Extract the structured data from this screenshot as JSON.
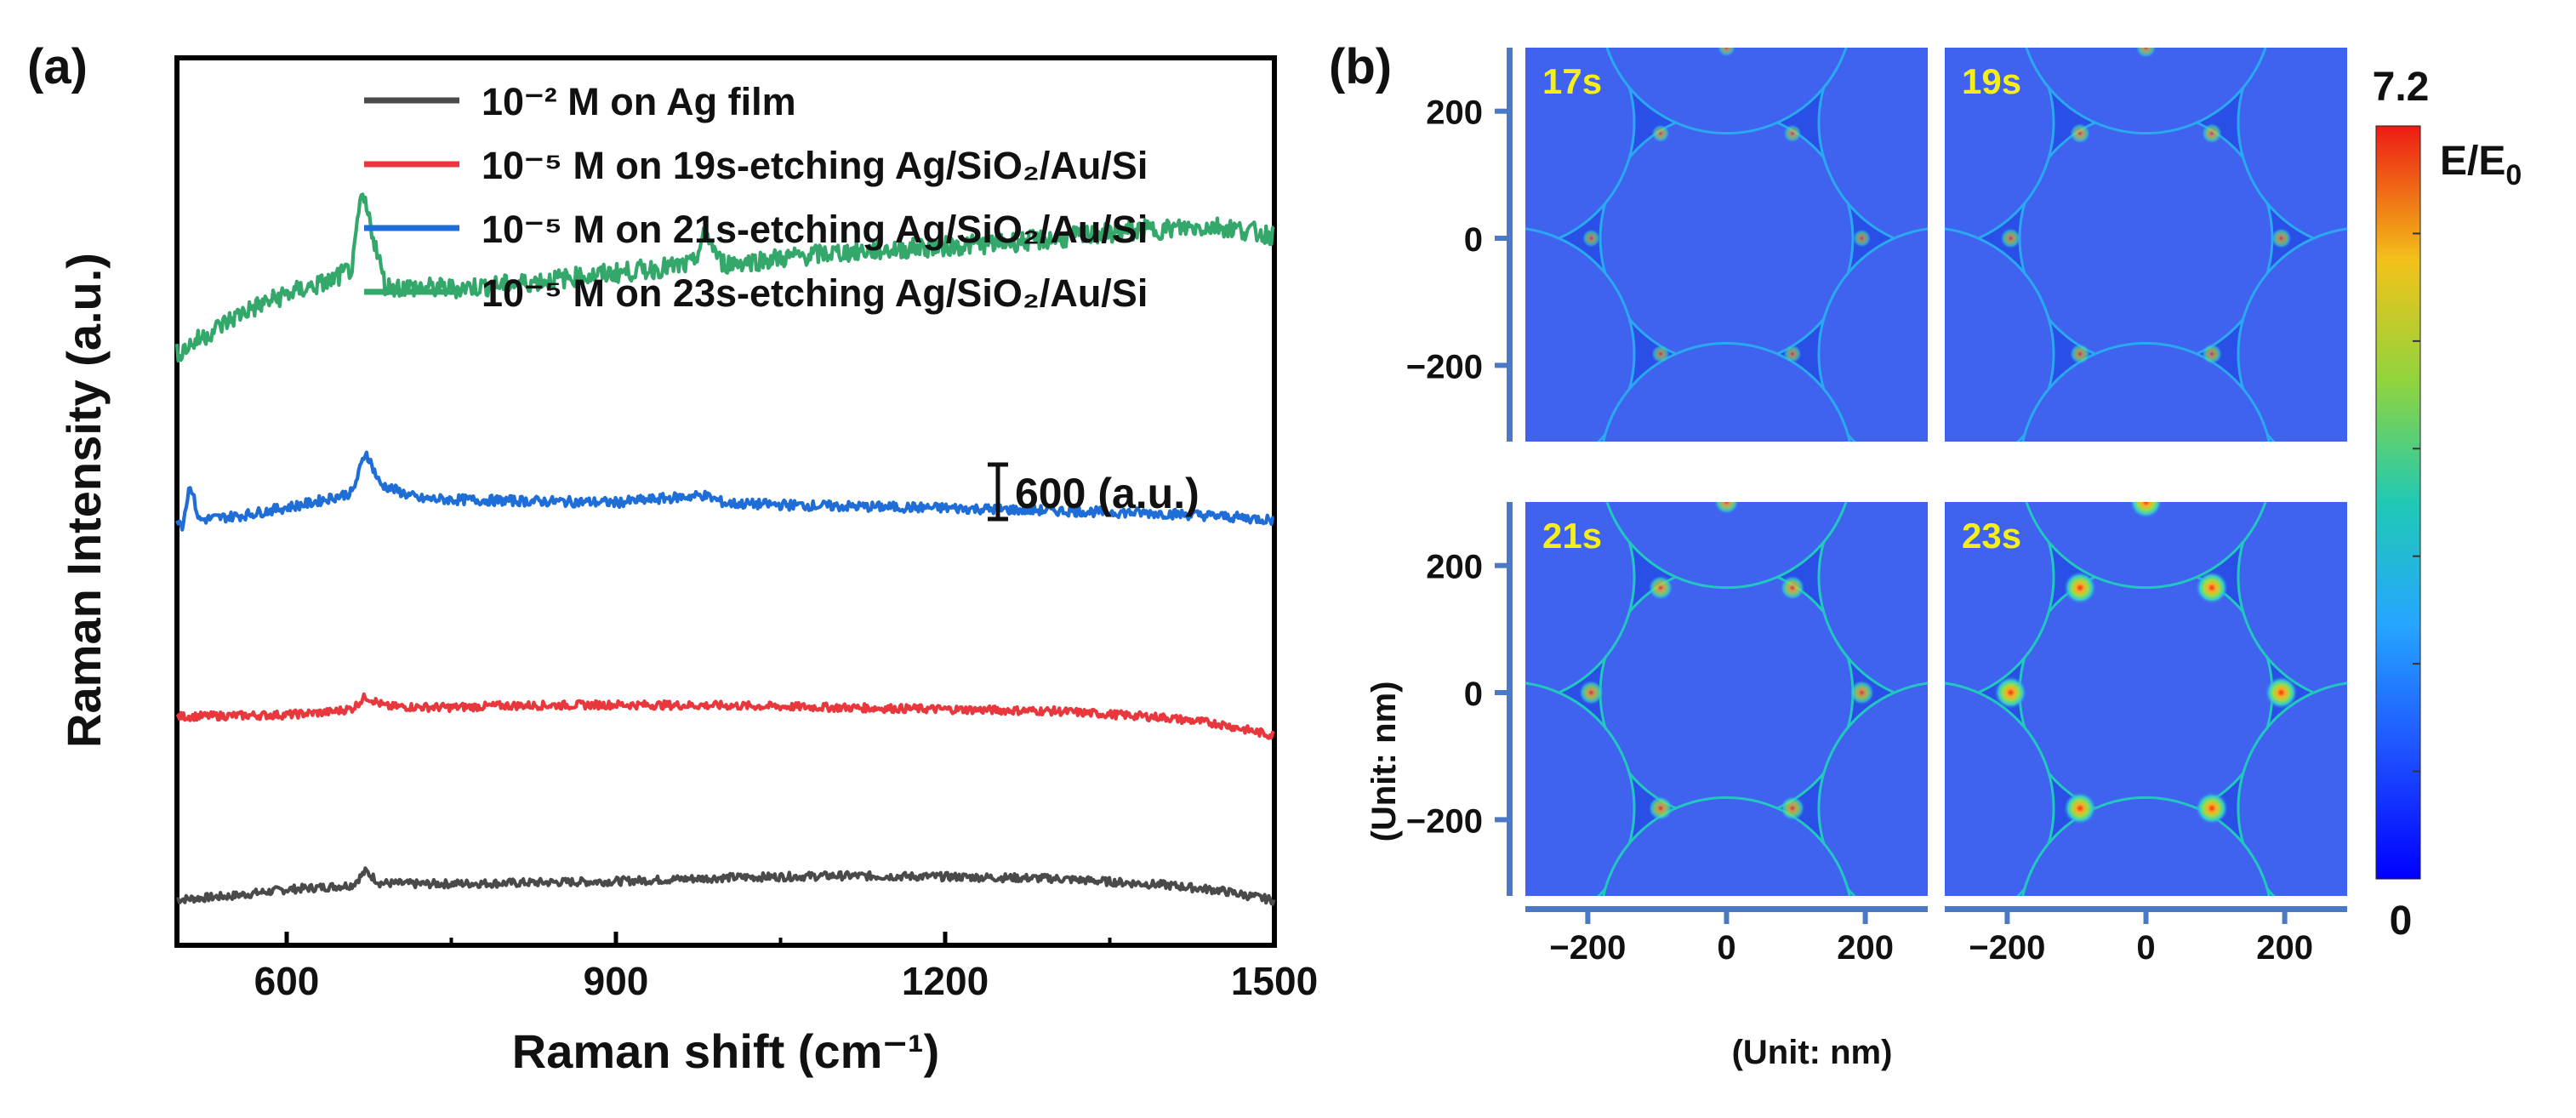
{
  "figure": {
    "panel_a_label": "(a)",
    "panel_b_label": "(b)"
  },
  "chart_data": [
    {
      "type": "line",
      "panel": "a",
      "title": "",
      "xlabel": "Raman shift (cm⁻¹)",
      "ylabel": "Raman Intensity (a.u.)",
      "xlim": [
        500,
        1500
      ],
      "xticks": [
        "600",
        "900",
        "1200",
        "1500"
      ],
      "xtick_values": [
        600,
        900,
        1200,
        1500
      ],
      "y_ticks_shown": false,
      "scale_bar_label": "600 (a.u.)",
      "scale_bar_value": 600,
      "legend_position": "top-right",
      "series": [
        {
          "name": "10⁻² M on Ag film",
          "color": "#4a4a4a",
          "offset": 2000,
          "points": [
            [
              500,
              2000
            ],
            [
              550,
              2040
            ],
            [
              600,
              2110
            ],
            [
              640,
              2140
            ],
            [
              660,
              2160
            ],
            [
              672,
              2310
            ],
            [
              685,
              2180
            ],
            [
              720,
              2170
            ],
            [
              800,
              2180
            ],
            [
              900,
              2200
            ],
            [
              1000,
              2240
            ],
            [
              1100,
              2260
            ],
            [
              1200,
              2250
            ],
            [
              1300,
              2230
            ],
            [
              1400,
              2160
            ],
            [
              1450,
              2100
            ],
            [
              1500,
              1990
            ]
          ],
          "peaks": [
            [
              672,
              120
            ]
          ]
        },
        {
          "name": "10⁻⁵ M on 19s-etching Ag/SiO₂/Au/Si",
          "color": "#e8383d",
          "offset": 4000,
          "points": [
            [
              500,
              4000
            ],
            [
              550,
              4010
            ],
            [
              600,
              4020
            ],
            [
              640,
              4050
            ],
            [
              660,
              4090
            ],
            [
              672,
              4220
            ],
            [
              690,
              4110
            ],
            [
              750,
              4100
            ],
            [
              800,
              4120
            ],
            [
              900,
              4130
            ],
            [
              1000,
              4120
            ],
            [
              1100,
              4100
            ],
            [
              1200,
              4080
            ],
            [
              1300,
              4060
            ],
            [
              1400,
              3990
            ],
            [
              1450,
              3920
            ],
            [
              1500,
              3790
            ]
          ],
          "peaks": [
            [
              672,
              110
            ]
          ]
        },
        {
          "name": "10⁻⁵ M on 21s-etching Ag/SiO₂/Au/Si",
          "color": "#1f6dd6",
          "offset": 6000,
          "points": [
            [
              500,
              6180
            ],
            [
              505,
              6090
            ],
            [
              512,
              6550
            ],
            [
              520,
              6150
            ],
            [
              560,
              6200
            ],
            [
              620,
              6330
            ],
            [
              660,
              6450
            ],
            [
              672,
              6900
            ],
            [
              685,
              6540
            ],
            [
              720,
              6380
            ],
            [
              800,
              6360
            ],
            [
              900,
              6340
            ],
            [
              980,
              6420
            ],
            [
              1000,
              6330
            ],
            [
              1100,
              6300
            ],
            [
              1200,
              6280
            ],
            [
              1300,
              6250
            ],
            [
              1400,
              6220
            ],
            [
              1450,
              6190
            ],
            [
              1500,
              6150
            ]
          ],
          "peaks": [
            [
              512,
              400
            ],
            [
              672,
              450
            ],
            [
              980,
              100
            ]
          ]
        },
        {
          "name": "10⁻⁵ M on 23s-etching Ag/SiO₂/Au/Si",
          "color": "#33a86a",
          "offset": 8000,
          "points": [
            [
              500,
              7970
            ],
            [
              530,
              8200
            ],
            [
              560,
              8420
            ],
            [
              600,
              8620
            ],
            [
              640,
              8760
            ],
            [
              660,
              8900
            ],
            [
              668,
              9700
            ],
            [
              675,
              9450
            ],
            [
              690,
              8700
            ],
            [
              750,
              8680
            ],
            [
              800,
              8720
            ],
            [
              900,
              8850
            ],
            [
              970,
              8940
            ],
            [
              982,
              9300
            ],
            [
              995,
              8970
            ],
            [
              1000,
              8950
            ],
            [
              1100,
              9070
            ],
            [
              1200,
              9140
            ],
            [
              1300,
              9220
            ],
            [
              1360,
              9300
            ],
            [
              1400,
              9330
            ],
            [
              1450,
              9360
            ],
            [
              1500,
              9260
            ]
          ],
          "peaks": [
            [
              668,
              800
            ],
            [
              982,
              360
            ]
          ]
        }
      ]
    },
    {
      "type": "heatmap",
      "panel": "b",
      "title": "",
      "colorbar_label": "E/E",
      "colorbar_label_sub": "0",
      "colorbar_range": [
        0,
        7.2
      ],
      "colorbar_max_label": "7.2",
      "colorbar_min_label": "0",
      "colormap": "jet",
      "x_unit_label": "(Unit: nm)",
      "y_unit_label": "(Unit: nm)",
      "xlim": [
        -290,
        290
      ],
      "ylim": [
        -320,
        300
      ],
      "x_ticks": [
        "−200",
        "0",
        "200"
      ],
      "x_tick_values": [
        -200,
        0,
        200
      ],
      "y_ticks": [
        "200",
        "0",
        "−200"
      ],
      "y_tick_values": [
        200,
        0,
        -200
      ],
      "panels": [
        {
          "label": "17s",
          "hotspot_level": 0.35,
          "gap_level": 0.25
        },
        {
          "label": "19s",
          "hotspot_level": 0.45,
          "gap_level": 0.4
        },
        {
          "label": "21s",
          "hotspot_level": 0.62,
          "gap_level": 0.5
        },
        {
          "label": "23s",
          "hotspot_level": 0.95,
          "gap_level": 0.55
        }
      ]
    }
  ]
}
